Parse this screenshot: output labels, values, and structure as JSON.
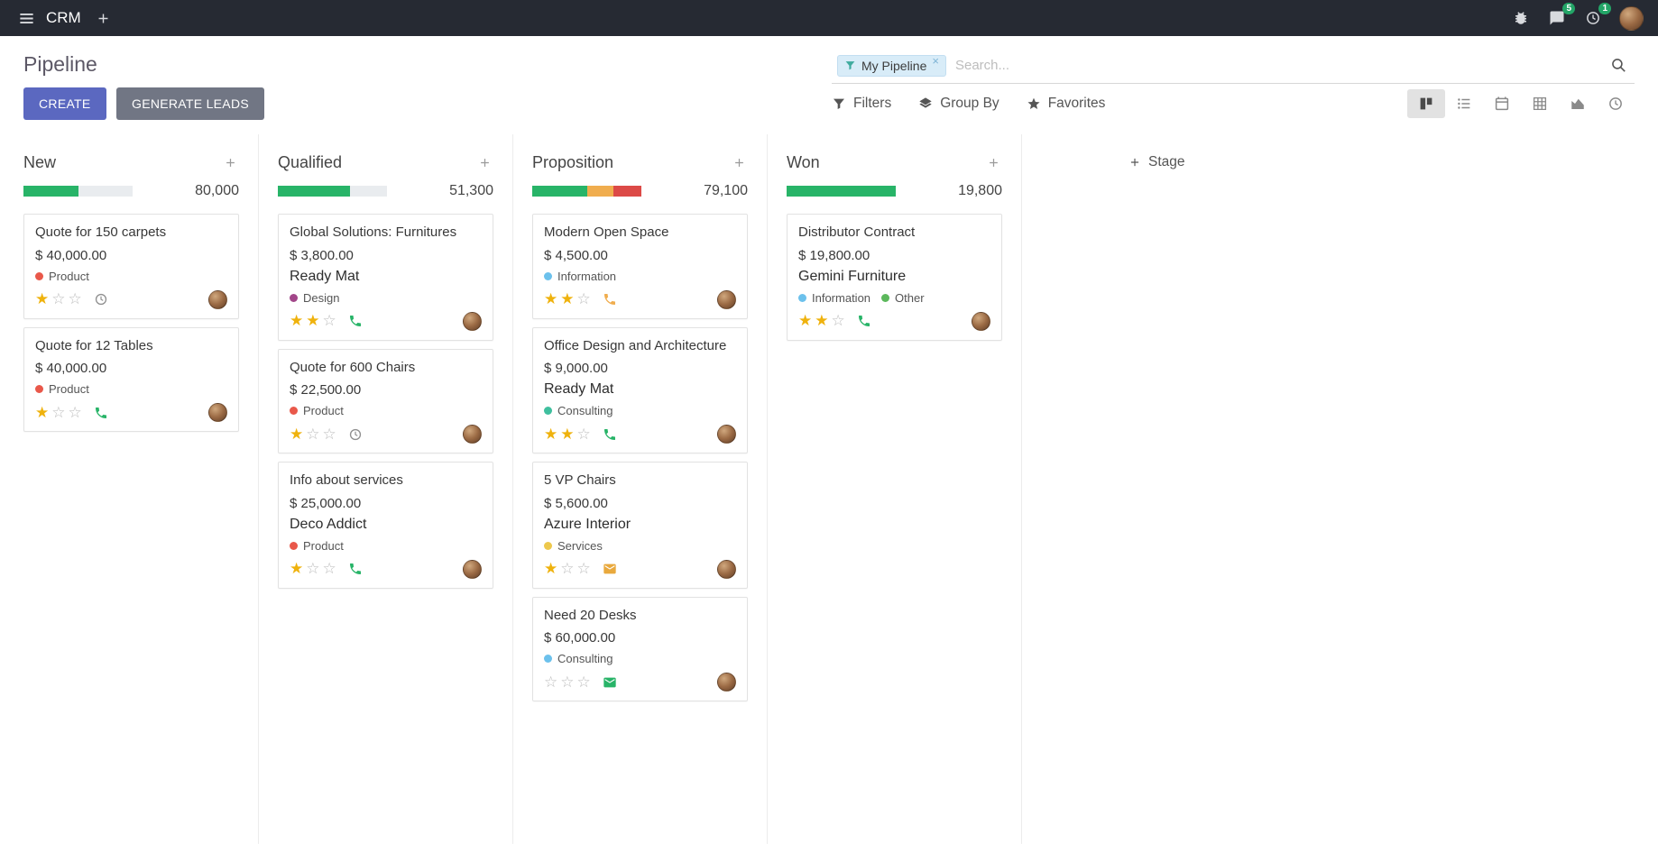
{
  "topbar": {
    "app_name": "CRM",
    "messages_badge": "5",
    "activities_badge": "1"
  },
  "control_panel": {
    "title": "Pipeline",
    "create_label": "CREATE",
    "generate_leads_label": "GENERATE LEADS",
    "filters_label": "Filters",
    "group_by_label": "Group By",
    "favorites_label": "Favorites"
  },
  "search": {
    "facet_label": "My Pipeline",
    "placeholder": "Search...",
    "remove_icon": "×"
  },
  "colors": {
    "topbar": "#262a33",
    "primary": "#5b68c0",
    "secondary": "#717684",
    "success": "#28b468",
    "warning": "#f0ad4e",
    "danger": "#dc4a47",
    "star": "#efb20d",
    "badge": "#23a567"
  },
  "kanban": {
    "add_stage_label": "Stage",
    "columns": [
      {
        "name": "New",
        "total": "80,000",
        "progress": [
          {
            "color": "#28b468",
            "pct": 50
          }
        ],
        "cards": [
          {
            "title": "Quote for 150 carpets",
            "amount": "$ 40,000.00",
            "partner": "",
            "tags": [
              {
                "label": "Product",
                "color": "#e9584a"
              }
            ],
            "stars": 1,
            "activity": {
              "type": "clock",
              "color": "#8f8f8f"
            }
          },
          {
            "title": "Quote for 12 Tables",
            "amount": "$ 40,000.00",
            "partner": "",
            "tags": [
              {
                "label": "Product",
                "color": "#e9584a"
              }
            ],
            "stars": 1,
            "activity": {
              "type": "phone",
              "color": "#28b468"
            }
          }
        ]
      },
      {
        "name": "Qualified",
        "total": "51,300",
        "progress": [
          {
            "color": "#28b468",
            "pct": 66
          }
        ],
        "cards": [
          {
            "title": "Global Solutions: Furnitures",
            "amount": "$ 3,800.00",
            "partner": "Ready Mat",
            "tags": [
              {
                "label": "Design",
                "color": "#a24689"
              }
            ],
            "stars": 2,
            "activity": {
              "type": "phone",
              "color": "#28b468"
            }
          },
          {
            "title": "Quote for 600 Chairs",
            "amount": "$ 22,500.00",
            "partner": "",
            "tags": [
              {
                "label": "Product",
                "color": "#e9584a"
              }
            ],
            "stars": 1,
            "activity": {
              "type": "clock",
              "color": "#8f8f8f"
            }
          },
          {
            "title": "Info about services",
            "amount": "$ 25,000.00",
            "partner": "Deco Addict",
            "tags": [
              {
                "label": "Product",
                "color": "#e9584a"
              }
            ],
            "stars": 1,
            "activity": {
              "type": "phone",
              "color": "#28b468"
            }
          }
        ]
      },
      {
        "name": "Proposition",
        "total": "79,100",
        "progress": [
          {
            "color": "#28b468",
            "pct": 50
          },
          {
            "color": "#f0ad4e",
            "pct": 24
          },
          {
            "color": "#dc4a47",
            "pct": 26
          }
        ],
        "cards": [
          {
            "title": "Modern Open Space",
            "amount": "$ 4,500.00",
            "partner": "",
            "tags": [
              {
                "label": "Information",
                "color": "#6cc1ec"
              }
            ],
            "stars": 2,
            "activity": {
              "type": "phone",
              "color": "#f0ad4e"
            }
          },
          {
            "title": "Office Design and Architecture",
            "amount": "$ 9,000.00",
            "partner": "Ready Mat",
            "tags": [
              {
                "label": "Consulting",
                "color": "#3fbf9e"
              }
            ],
            "stars": 2,
            "activity": {
              "type": "phone",
              "color": "#28b468"
            }
          },
          {
            "title": "5 VP Chairs",
            "amount": "$ 5,600.00",
            "partner": "Azure Interior",
            "tags": [
              {
                "label": "Services",
                "color": "#edc84c"
              }
            ],
            "stars": 1,
            "activity": {
              "type": "envelope",
              "color": "#e9a93d"
            }
          },
          {
            "title": "Need 20 Desks",
            "amount": "$ 60,000.00",
            "partner": "",
            "tags": [
              {
                "label": "Consulting",
                "color": "#6cc1ec"
              }
            ],
            "stars": 0,
            "activity": {
              "type": "envelope",
              "color": "#28b468"
            }
          }
        ]
      },
      {
        "name": "Won",
        "total": "19,800",
        "progress": [
          {
            "color": "#28b468",
            "pct": 100
          }
        ],
        "cards": [
          {
            "title": "Distributor Contract",
            "amount": "$ 19,800.00",
            "partner": "Gemini Furniture",
            "tags": [
              {
                "label": "Information",
                "color": "#6cc1ec"
              },
              {
                "label": "Other",
                "color": "#5cb85c"
              }
            ],
            "stars": 2,
            "activity": {
              "type": "phone",
              "color": "#28b468"
            }
          }
        ]
      }
    ]
  }
}
